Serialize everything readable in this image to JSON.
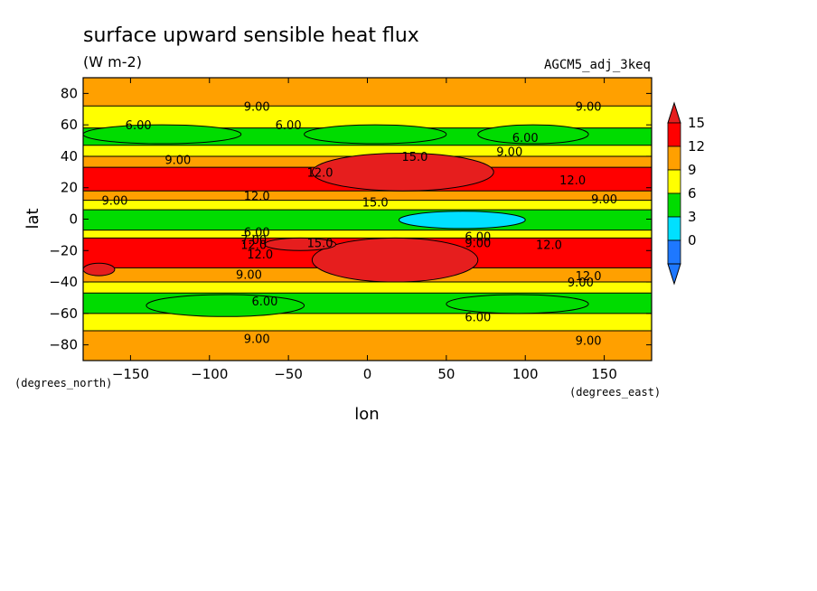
{
  "chart_data": {
    "type": "heatmap",
    "title": "surface upward sensible heat flux",
    "units": "(W m-2)",
    "run_label": "AGCM5_adj_3keq",
    "xlabel": "lon",
    "ylabel": "lat",
    "x_units": "(degrees_east)",
    "y_units": "(degrees_north)",
    "xlim": [
      -180,
      180
    ],
    "ylim": [
      -90,
      90
    ],
    "x_ticks": [
      -150,
      -100,
      -50,
      0,
      50,
      100,
      150
    ],
    "y_ticks": [
      -80,
      -60,
      -40,
      -20,
      0,
      20,
      40,
      60,
      80
    ],
    "colorbar": {
      "levels": [
        0,
        3,
        6,
        9,
        12,
        15
      ],
      "tick_labels": [
        "0",
        "3",
        "6",
        "9",
        "12",
        "15"
      ],
      "colors": [
        "#1e78ff",
        "#00e0ff",
        "#00dc00",
        "#ffff00",
        "#ffa000",
        "#ff0000",
        "#e61e1e"
      ],
      "extend": "both"
    },
    "zonal_bands": [
      {
        "lat_from": 72,
        "lat_to": 90,
        "value": 10
      },
      {
        "lat_from": 58,
        "lat_to": 72,
        "value": 7
      },
      {
        "lat_from": 47,
        "lat_to": 58,
        "value": 5
      },
      {
        "lat_from": 40,
        "lat_to": 47,
        "value": 7.5
      },
      {
        "lat_from": 33,
        "lat_to": 40,
        "value": 10
      },
      {
        "lat_from": 18,
        "lat_to": 33,
        "value": 13
      },
      {
        "lat_from": 12,
        "lat_to": 18,
        "value": 10
      },
      {
        "lat_from": 6,
        "lat_to": 12,
        "value": 7.5
      },
      {
        "lat_from": -7,
        "lat_to": 6,
        "value": 4
      },
      {
        "lat_from": -12,
        "lat_to": -7,
        "value": 7.5
      },
      {
        "lat_from": -31,
        "lat_to": -12,
        "value": 13
      },
      {
        "lat_from": -40,
        "lat_to": -31,
        "value": 10
      },
      {
        "lat_from": -47,
        "lat_to": -40,
        "value": 7.5
      },
      {
        "lat_from": -60,
        "lat_to": -47,
        "value": 5.5
      },
      {
        "lat_from": -71,
        "lat_to": -60,
        "value": 7
      },
      {
        "lat_from": -90,
        "lat_to": -71,
        "value": 10
      }
    ],
    "regions": [
      {
        "kind": "max",
        "lon": [
          -35,
          80
        ],
        "lat": [
          18,
          42
        ],
        "value": 16
      },
      {
        "kind": "max",
        "lon": [
          -35,
          70
        ],
        "lat": [
          -40,
          -12
        ],
        "value": 16
      },
      {
        "kind": "max",
        "lon": [
          -180,
          -160
        ],
        "lat": [
          -36,
          -28
        ],
        "value": 16
      },
      {
        "kind": "max",
        "lon": [
          -65,
          -20
        ],
        "lat": [
          -20,
          -12
        ],
        "value": 16
      },
      {
        "kind": "min",
        "lon": [
          20,
          100
        ],
        "lat": [
          -6,
          5
        ],
        "value": 1.5
      },
      {
        "kind": "min",
        "lon": [
          -180,
          -80
        ],
        "lat": [
          48,
          60
        ],
        "value": 4
      },
      {
        "kind": "min",
        "lon": [
          -40,
          50
        ],
        "lat": [
          48,
          60
        ],
        "value": 4
      },
      {
        "kind": "min",
        "lon": [
          70,
          140
        ],
        "lat": [
          48,
          60
        ],
        "value": 4
      },
      {
        "kind": "min",
        "lon": [
          -140,
          -40
        ],
        "lat": [
          -62,
          -48
        ],
        "value": 4
      },
      {
        "kind": "min",
        "lon": [
          50,
          140
        ],
        "lat": [
          -60,
          -48
        ],
        "value": 4
      }
    ],
    "contour_labels": [
      {
        "text": "9.00",
        "lon": -70,
        "lat": 72
      },
      {
        "text": "9.00",
        "lon": 140,
        "lat": 72
      },
      {
        "text": "6.00",
        "lon": -145,
        "lat": 60
      },
      {
        "text": "6.00",
        "lon": -50,
        "lat": 60
      },
      {
        "text": "6.00",
        "lon": 100,
        "lat": 52
      },
      {
        "text": "9.00",
        "lon": 90,
        "lat": 43
      },
      {
        "text": "9.00",
        "lon": -120,
        "lat": 38
      },
      {
        "text": "15.0",
        "lon": 30,
        "lat": 40
      },
      {
        "text": "12.0",
        "lon": -30,
        "lat": 30
      },
      {
        "text": "12.0",
        "lon": 130,
        "lat": 25
      },
      {
        "text": "12.0",
        "lon": -70,
        "lat": 15
      },
      {
        "text": "9.00",
        "lon": -160,
        "lat": 12
      },
      {
        "text": "9.00",
        "lon": 150,
        "lat": 13
      },
      {
        "text": "15.0",
        "lon": 5,
        "lat": 11
      },
      {
        "text": "6.00",
        "lon": -70,
        "lat": -8
      },
      {
        "text": "7.00",
        "lon": -72,
        "lat": -13
      },
      {
        "text": "12.0",
        "lon": -72,
        "lat": -16
      },
      {
        "text": "12.0",
        "lon": -68,
        "lat": -22
      },
      {
        "text": "15.0",
        "lon": -30,
        "lat": -15
      },
      {
        "text": "6.00",
        "lon": 70,
        "lat": -11
      },
      {
        "text": "9.00",
        "lon": 70,
        "lat": -15
      },
      {
        "text": "12.0",
        "lon": 115,
        "lat": -16
      },
      {
        "text": "9.00",
        "lon": -75,
        "lat": -35
      },
      {
        "text": "12.0",
        "lon": 140,
        "lat": -36
      },
      {
        "text": "9.00",
        "lon": 135,
        "lat": -40
      },
      {
        "text": "6.00",
        "lon": -65,
        "lat": -52
      },
      {
        "text": "6.00",
        "lon": 70,
        "lat": -62
      },
      {
        "text": "9.00",
        "lon": -70,
        "lat": -76
      },
      {
        "text": "9.00",
        "lon": 140,
        "lat": -77
      }
    ]
  }
}
